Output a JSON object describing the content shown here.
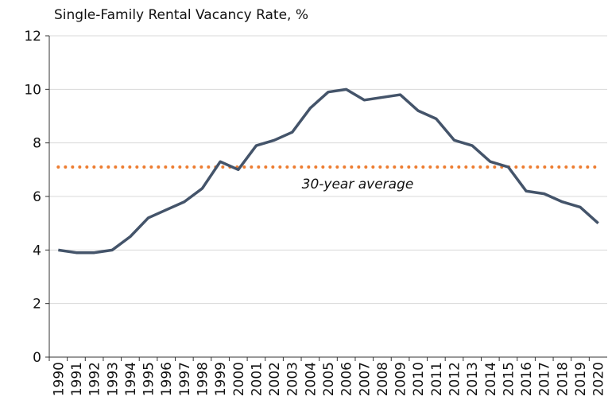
{
  "chart_data": {
    "type": "line",
    "title": "Single-Family Rental Vacancy Rate, %",
    "categories": [
      "1990",
      "1991",
      "1992",
      "1993",
      "1994",
      "1995",
      "1996",
      "1997",
      "1998",
      "1999",
      "2000",
      "2001",
      "2002",
      "2003",
      "2004",
      "2005",
      "2006",
      "2007",
      "2008",
      "2009",
      "2010",
      "2011",
      "2012",
      "2013",
      "2014",
      "2015",
      "2016",
      "2017",
      "2018",
      "2019",
      "2020"
    ],
    "series": [
      {
        "color": "#44546a",
        "values": [
          4.0,
          3.9,
          3.9,
          4.0,
          4.5,
          5.2,
          5.5,
          5.8,
          6.3,
          7.3,
          7.0,
          7.9,
          8.1,
          8.4,
          9.3,
          9.9,
          10.0,
          9.6,
          9.7,
          9.8,
          9.2,
          8.9,
          8.1,
          7.9,
          7.3,
          7.1,
          6.2,
          6.1,
          5.8,
          5.6,
          5.0
        ]
      }
    ],
    "average": {
      "label": "30-year average",
      "value": 7.1,
      "color": "#ed7d31"
    },
    "ylim": [
      0,
      12
    ],
    "yticks": [
      0,
      2,
      4,
      6,
      8,
      10,
      12
    ],
    "grid": true
  }
}
